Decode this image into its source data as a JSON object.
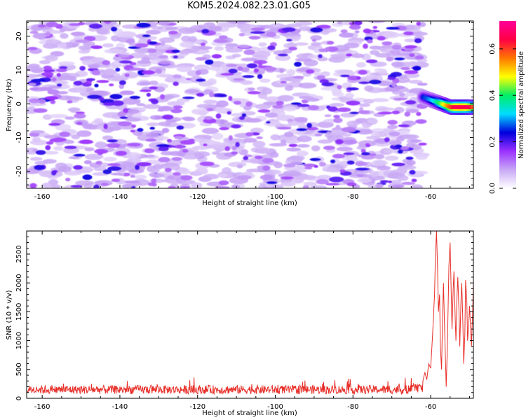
{
  "title": "KOM5.2024.082.23.01.G05",
  "chart_data": [
    {
      "type": "heatmap",
      "title": "",
      "xlabel": "Height of straight line (km)",
      "ylabel": "Frequency (Hz)",
      "xlim": [
        -164,
        -49
      ],
      "ylim": [
        -25,
        24.5
      ],
      "x_ticks": [
        -160,
        -140,
        -120,
        -100,
        -80,
        -60
      ],
      "y_ticks": [
        -20,
        -10,
        0,
        10,
        20
      ],
      "data_extent_x": [
        -163,
        -62
      ],
      "noise_amplitude_range": [
        0.0,
        0.15
      ],
      "signal": {
        "x_range": [
          -62,
          -49
        ],
        "frequency_hz": [
          2,
          -1
        ],
        "peak_amplitude": 0.65,
        "peak_x": -52
      },
      "colorbar": {
        "label": "Normalized spectral amplitude",
        "range": [
          0.0,
          0.72
        ],
        "ticks": [
          0.0,
          0.2,
          0.4,
          0.6
        ],
        "colormap": [
          "#ffffff",
          "#c8a8f5",
          "#9b30ff",
          "#0000dd",
          "#00ddff",
          "#00ee66",
          "#ffff00",
          "#ff7700",
          "#ff0044",
          "#ff0099"
        ]
      }
    },
    {
      "type": "line",
      "title": "",
      "xlabel": "Height of straight line (km)",
      "ylabel": "SNR (10 * v/v)",
      "xlim": [
        -164,
        -49
      ],
      "ylim": [
        0,
        2900
      ],
      "x_ticks": [
        -160,
        -140,
        -120,
        -100,
        -80,
        -60
      ],
      "y_ticks": [
        0,
        500,
        1000,
        1500,
        2000,
        2500
      ],
      "line_color": "#e8302a",
      "series": [
        {
          "noise_baseline": 150,
          "x": [
            -62,
            -61.5,
            -61,
            -60.5,
            -60,
            -59.5,
            -59,
            -58.8,
            -58.5,
            -58.2,
            -58,
            -57.7,
            -57.5,
            -57.2,
            -57,
            -56.7,
            -56.5,
            -56.2,
            -56,
            -55.7,
            -55.5,
            -55.3,
            -55,
            -54.7,
            -54.5,
            -54.2,
            -54,
            -53.7,
            -53.5,
            -53.2,
            -53,
            -52.7,
            -52.5,
            -52.2,
            -52,
            -51.7,
            -51.5,
            -51.2,
            -51,
            -50.7,
            -50.5,
            -50.2,
            -50,
            -49.7,
            -49.5,
            -49.2,
            -49
          ],
          "y": [
            300,
            450,
            320,
            600,
            520,
            1100,
            1800,
            2400,
            2900,
            2200,
            1500,
            1800,
            900,
            500,
            1200,
            2000,
            1400,
            700,
            200,
            900,
            1600,
            2300,
            2700,
            1800,
            1200,
            1900,
            2200,
            1400,
            1000,
            1800,
            2100,
            1500,
            900,
            1700,
            2000,
            1300,
            600,
            1100,
            2050,
            1700,
            1000,
            1300,
            1600,
            1200,
            900,
            1500,
            2000
          ]
        }
      ]
    }
  ]
}
